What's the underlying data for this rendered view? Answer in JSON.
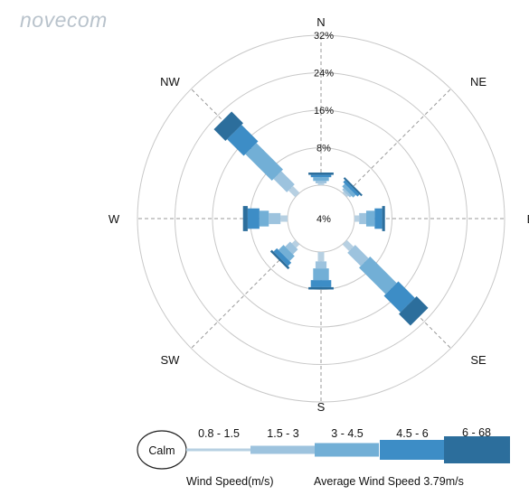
{
  "logo": {
    "text": "novecom"
  },
  "chart_data": {
    "type": "wind-rose",
    "directions": [
      "N",
      "NE",
      "E",
      "SE",
      "S",
      "SW",
      "W",
      "NW"
    ],
    "direction_angles": [
      0,
      45,
      90,
      135,
      180,
      225,
      270,
      315
    ],
    "radial_ticks": [
      "4%",
      "8%",
      "16%",
      "24%",
      "32%"
    ],
    "radial_tick_values": [
      4,
      8,
      16,
      24,
      32
    ],
    "r_max": 32,
    "speed_bins": [
      "0.8 - 1.5",
      "1.5 - 3",
      "3 - 4.5",
      "4.5 - 6",
      "6 - 68"
    ],
    "calm_label": "Calm",
    "colors": [
      "#b7d0e2",
      "#9dc3de",
      "#72afd6",
      "#3d8dc6",
      "#2c6e9c"
    ],
    "series": [
      {
        "direction": "N",
        "values": [
          0.4,
          0.5,
          0.8,
          0.5,
          0.5
        ]
      },
      {
        "direction": "NE",
        "values": [
          0.4,
          0.5,
          0.8,
          0.6,
          0.4
        ]
      },
      {
        "direction": "E",
        "values": [
          1.0,
          1.5,
          1.8,
          1.6,
          0.6
        ]
      },
      {
        "direction": "SE",
        "values": [
          2.0,
          4.0,
          8.0,
          5.0,
          3.5
        ]
      },
      {
        "direction": "S",
        "values": [
          2.0,
          1.5,
          2.5,
          1.5,
          0.5
        ]
      },
      {
        "direction": "SW",
        "values": [
          1.0,
          1.5,
          1.5,
          1.0,
          0.5
        ]
      },
      {
        "direction": "W",
        "values": [
          1.5,
          2.5,
          2.0,
          2.5,
          1.0
        ]
      },
      {
        "direction": "NW",
        "values": [
          2.0,
          4.0,
          8.0,
          5.0,
          3.5
        ]
      }
    ],
    "legend_title": "Wind Speed(m/s)",
    "average_label": "Average Wind Speed 3.79m/s"
  }
}
